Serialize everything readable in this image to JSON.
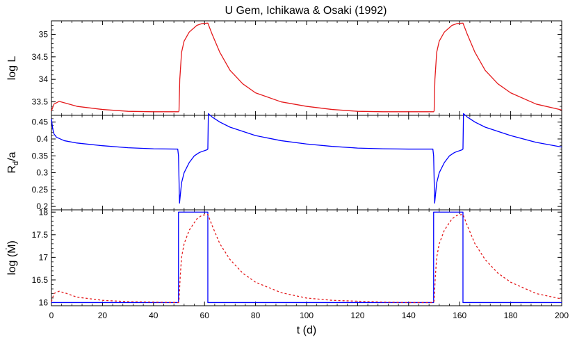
{
  "chart_data": {
    "type": "line",
    "title": "U Gem, Ichikawa & Osaki (1992)",
    "xlabel": "t (d)",
    "xlim": [
      0,
      200
    ],
    "x_ticks": [
      0,
      20,
      40,
      60,
      80,
      100,
      120,
      140,
      160,
      180,
      200
    ],
    "panels": [
      {
        "id": "luminosity",
        "ylabel": "log L",
        "ylim": [
          33.2,
          35.3
        ],
        "y_ticks": [
          33.5,
          34,
          34.5,
          35
        ],
        "y_tick_labels": [
          "33.5",
          "34",
          "34.5",
          "35"
        ],
        "series": [
          {
            "color": "#e41a1c",
            "style": "solid",
            "points": [
              [
                0,
                33.3
              ],
              [
                1,
                33.45
              ],
              [
                3,
                33.51
              ],
              [
                5,
                33.48
              ],
              [
                10,
                33.4
              ],
              [
                20,
                33.33
              ],
              [
                30,
                33.29
              ],
              [
                40,
                33.28
              ],
              [
                49.8,
                33.28
              ],
              [
                50,
                33.3
              ],
              [
                50.3,
                34.0
              ],
              [
                51,
                34.6
              ],
              [
                52,
                34.85
              ],
              [
                54,
                35.05
              ],
              [
                57,
                35.2
              ],
              [
                59,
                35.24
              ],
              [
                61.3,
                35.25
              ],
              [
                63,
                35.0
              ],
              [
                66,
                34.6
              ],
              [
                70,
                34.2
              ],
              [
                75,
                33.9
              ],
              [
                80,
                33.7
              ],
              [
                90,
                33.5
              ],
              [
                100,
                33.4
              ],
              [
                110,
                33.33
              ],
              [
                120,
                33.29
              ],
              [
                130,
                33.28
              ],
              [
                140,
                33.28
              ],
              [
                149.8,
                33.28
              ],
              [
                150,
                33.3
              ],
              [
                150.3,
                34.0
              ],
              [
                151,
                34.6
              ],
              [
                152,
                34.85
              ],
              [
                154,
                35.05
              ],
              [
                157,
                35.2
              ],
              [
                159,
                35.24
              ],
              [
                161.3,
                35.25
              ],
              [
                163,
                35.0
              ],
              [
                166,
                34.6
              ],
              [
                170,
                34.2
              ],
              [
                175,
                33.9
              ],
              [
                180,
                33.7
              ],
              [
                190,
                33.45
              ],
              [
                200,
                33.32
              ]
            ]
          }
        ]
      },
      {
        "id": "radius",
        "ylabel": "R_d/a",
        "ylabel_main": "R",
        "ylabel_sub": "d",
        "ylabel_tail": "/a",
        "ylim": [
          0.19,
          0.47
        ],
        "y_ticks": [
          0.2,
          0.25,
          0.3,
          0.35,
          0.4,
          0.45
        ],
        "y_tick_labels": [
          "0.2",
          "0.25",
          "0.3",
          "0.35",
          "0.4",
          "0.45"
        ],
        "series": [
          {
            "color": "#0000ff",
            "style": "solid",
            "points": [
              [
                0,
                0.46
              ],
              [
                0.5,
                0.43
              ],
              [
                1,
                0.415
              ],
              [
                2,
                0.405
              ],
              [
                5,
                0.395
              ],
              [
                10,
                0.388
              ],
              [
                20,
                0.38
              ],
              [
                30,
                0.374
              ],
              [
                40,
                0.371
              ],
              [
                49.5,
                0.37
              ],
              [
                49.8,
                0.35
              ],
              [
                50.2,
                0.21
              ],
              [
                51,
                0.27
              ],
              [
                52,
                0.3
              ],
              [
                54,
                0.33
              ],
              [
                56,
                0.35
              ],
              [
                58,
                0.36
              ],
              [
                61,
                0.368
              ],
              [
                61.3,
                0.37
              ],
              [
                61.5,
                0.475
              ],
              [
                63,
                0.465
              ],
              [
                66,
                0.45
              ],
              [
                70,
                0.435
              ],
              [
                80,
                0.41
              ],
              [
                90,
                0.395
              ],
              [
                100,
                0.385
              ],
              [
                110,
                0.378
              ],
              [
                120,
                0.373
              ],
              [
                130,
                0.371
              ],
              [
                140,
                0.37
              ],
              [
                149.5,
                0.37
              ],
              [
                149.8,
                0.35
              ],
              [
                150.2,
                0.21
              ],
              [
                151,
                0.27
              ],
              [
                152,
                0.3
              ],
              [
                154,
                0.33
              ],
              [
                156,
                0.35
              ],
              [
                158,
                0.36
              ],
              [
                161,
                0.368
              ],
              [
                161.3,
                0.37
              ],
              [
                161.5,
                0.475
              ],
              [
                163,
                0.465
              ],
              [
                166,
                0.45
              ],
              [
                170,
                0.435
              ],
              [
                180,
                0.41
              ],
              [
                190,
                0.39
              ],
              [
                200,
                0.376
              ]
            ]
          }
        ]
      },
      {
        "id": "mdot",
        "ylabel": "log (Ṁ)",
        "ylim": [
          15.93,
          18.05
        ],
        "y_ticks": [
          16,
          16.5,
          17,
          17.5,
          18
        ],
        "y_tick_labels": [
          "16",
          "16.5",
          "17",
          "17.5",
          "18"
        ],
        "series": [
          {
            "color": "#0000ff",
            "style": "solid",
            "points": [
              [
                0,
                16
              ],
              [
                49.8,
                16
              ],
              [
                49.8,
                18
              ],
              [
                61.3,
                18
              ],
              [
                61.3,
                16
              ],
              [
                149.8,
                16
              ],
              [
                149.8,
                18
              ],
              [
                161.3,
                18
              ],
              [
                161.3,
                16
              ],
              [
                200,
                16
              ]
            ]
          },
          {
            "color": "#e41a1c",
            "style": "dashed",
            "points": [
              [
                0,
                16.02
              ],
              [
                1,
                16.2
              ],
              [
                3,
                16.25
              ],
              [
                6,
                16.2
              ],
              [
                10,
                16.12
              ],
              [
                20,
                16.05
              ],
              [
                30,
                16.02
              ],
              [
                40,
                16.01
              ],
              [
                49.8,
                16
              ],
              [
                50,
                16.05
              ],
              [
                50.5,
                16.6
              ],
              [
                51,
                17
              ],
              [
                52,
                17.3
              ],
              [
                54,
                17.6
              ],
              [
                57,
                17.85
              ],
              [
                59,
                17.93
              ],
              [
                61.3,
                17.95
              ],
              [
                63,
                17.7
              ],
              [
                66,
                17.3
              ],
              [
                70,
                16.95
              ],
              [
                75,
                16.65
              ],
              [
                80,
                16.45
              ],
              [
                90,
                16.22
              ],
              [
                100,
                16.1
              ],
              [
                110,
                16.05
              ],
              [
                120,
                16.03
              ],
              [
                130,
                16.01
              ],
              [
                140,
                16
              ],
              [
                149.8,
                16
              ],
              [
                150,
                16.05
              ],
              [
                150.5,
                16.6
              ],
              [
                151,
                17
              ],
              [
                152,
                17.3
              ],
              [
                154,
                17.6
              ],
              [
                157,
                17.85
              ],
              [
                159,
                17.93
              ],
              [
                161.3,
                17.95
              ],
              [
                163,
                17.7
              ],
              [
                166,
                17.3
              ],
              [
                170,
                16.95
              ],
              [
                175,
                16.65
              ],
              [
                180,
                16.45
              ],
              [
                190,
                16.2
              ],
              [
                200,
                16.08
              ]
            ]
          }
        ]
      }
    ]
  }
}
